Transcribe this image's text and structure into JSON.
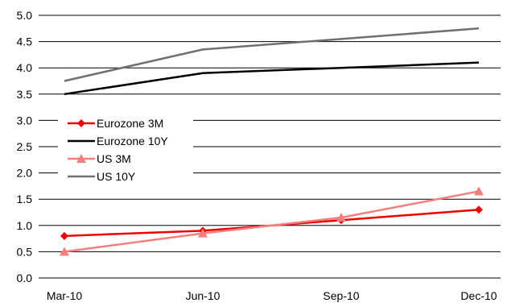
{
  "chart_data": {
    "type": "line",
    "title": "",
    "xlabel": "",
    "ylabel": "",
    "categories": [
      "Mar-10",
      "Jun-10",
      "Sep-10",
      "Dec-10"
    ],
    "ylim": [
      0,
      5
    ],
    "ytick_step": 0.5,
    "yticks": [
      "0.0",
      "0.5",
      "1.0",
      "1.5",
      "2.0",
      "2.5",
      "3.0",
      "3.5",
      "4.0",
      "4.5",
      "5.0"
    ],
    "grid": true,
    "legend_position": "left, middle",
    "series": [
      {
        "name": "Eurozone  3M",
        "values": [
          0.8,
          0.9,
          1.1,
          1.3
        ],
        "color": "#ee0000",
        "marker": "diamond"
      },
      {
        "name": "Eurozone  10Y",
        "values": [
          3.5,
          3.9,
          4.0,
          4.1
        ],
        "color": "#000000",
        "marker": "none"
      },
      {
        "name": "US 3M",
        "values": [
          0.5,
          0.85,
          1.15,
          1.65
        ],
        "color": "#f47f7f",
        "marker": "triangle"
      },
      {
        "name": "US 10Y",
        "values": [
          3.75,
          4.35,
          4.55,
          4.75
        ],
        "color": "#707070",
        "marker": "none"
      }
    ]
  }
}
